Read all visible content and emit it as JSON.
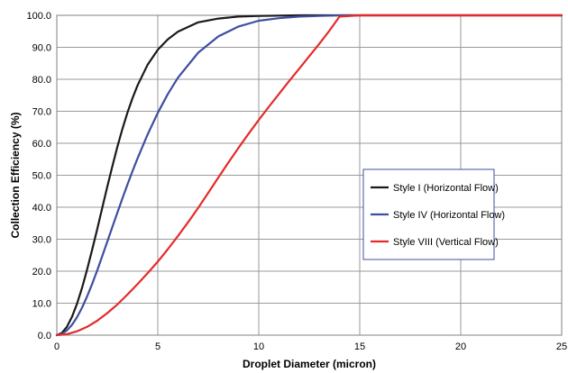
{
  "chart_data": {
    "type": "line",
    "title": "",
    "xlabel": "Droplet Diameter (micron)",
    "ylabel": "Collection Efficiency (%)",
    "xlim": [
      0,
      25
    ],
    "ylim": [
      0,
      100
    ],
    "x_ticks": [
      "0",
      "5",
      "10",
      "15",
      "20",
      "25"
    ],
    "y_ticks": [
      "0.0",
      "10.0",
      "20.0",
      "30.0",
      "40.0",
      "50.0",
      "60.0",
      "70.0",
      "80.0",
      "90.0",
      "100.0"
    ],
    "grid": true,
    "legend_position": "center-right",
    "series": [
      {
        "name": "Style I (Horizontal Flow)",
        "color": "#1a1a1a",
        "x": [
          0,
          0.25,
          0.5,
          0.75,
          1.0,
          1.25,
          1.5,
          1.75,
          2.0,
          2.25,
          2.5,
          2.75,
          3.0,
          3.25,
          3.5,
          3.75,
          4.0,
          4.5,
          5.0,
          5.5,
          6.0,
          7.0,
          8.0,
          9.0,
          10.0,
          12.0,
          14.0,
          17.0,
          20.0,
          25.0
        ],
        "y": [
          0,
          0.7,
          2.6,
          5.7,
          9.8,
          14.8,
          20.5,
          26.7,
          33.1,
          39.8,
          46.4,
          52.8,
          58.9,
          64.5,
          69.6,
          74.1,
          78.1,
          84.6,
          89.2,
          92.5,
          94.9,
          97.8,
          99.0,
          99.6,
          99.8,
          100.0,
          100.0,
          100.0,
          100.0,
          100.0
        ]
      },
      {
        "name": "Style IV (Horizontal Flow)",
        "color": "#3f4ea0",
        "x": [
          0,
          0.25,
          0.5,
          0.75,
          1.0,
          1.25,
          1.5,
          1.75,
          2.0,
          2.25,
          2.5,
          2.75,
          3.0,
          3.25,
          3.5,
          3.75,
          4.0,
          4.5,
          5.0,
          5.5,
          6.0,
          7.0,
          8.0,
          9.0,
          10.0,
          11.0,
          12.0,
          13.0,
          14.0,
          17.0,
          20.0,
          25.0
        ],
        "y": [
          0,
          0.4,
          1.5,
          3.2,
          5.6,
          8.6,
          12.1,
          16.0,
          20.2,
          24.7,
          29.2,
          33.8,
          38.3,
          42.8,
          47.1,
          51.3,
          55.3,
          62.8,
          69.5,
          75.4,
          80.5,
          88.3,
          93.4,
          96.5,
          98.3,
          99.1,
          99.6,
          99.8,
          100.0,
          100.0,
          100.0,
          100.0
        ]
      },
      {
        "name": "Style VIII (Vertical Flow)",
        "color": "#e52a2a",
        "x": [
          0,
          0.5,
          1.0,
          1.5,
          2.0,
          2.5,
          3.0,
          3.5,
          4.0,
          4.5,
          5.0,
          5.5,
          6.0,
          6.5,
          7.0,
          7.5,
          8.0,
          8.5,
          9.0,
          9.5,
          10.0,
          10.5,
          11.0,
          11.5,
          12.0,
          12.5,
          13.0,
          13.5,
          14.0,
          15.0,
          17.0,
          20.0,
          25.0
        ],
        "y": [
          0,
          0.3,
          1.2,
          2.6,
          4.5,
          6.9,
          9.6,
          12.7,
          16.0,
          19.4,
          23.0,
          26.9,
          31.0,
          35.3,
          39.8,
          44.5,
          49.3,
          54.0,
          58.6,
          63.0,
          67.3,
          71.4,
          75.4,
          79.4,
          83.3,
          87.2,
          91.1,
          95.2,
          99.6,
          100.0,
          100.0,
          100.0,
          100.0
        ]
      }
    ]
  }
}
